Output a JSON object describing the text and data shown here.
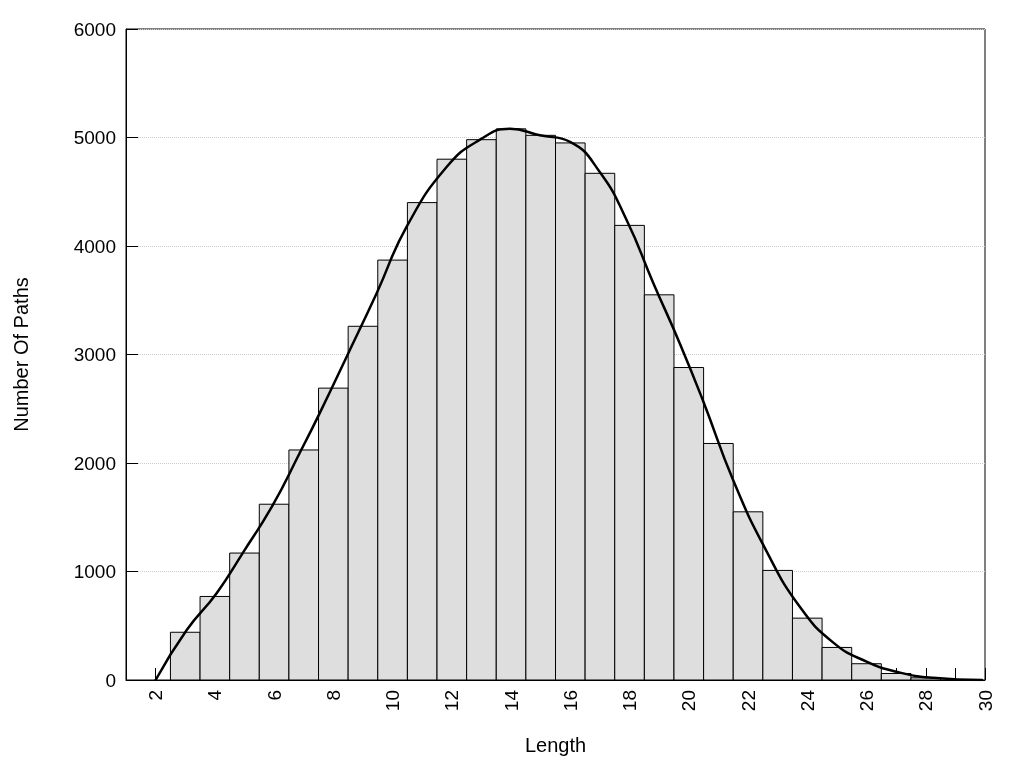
{
  "chart_data": {
    "type": "histogram",
    "xlabel": "Length",
    "ylabel": "Number Of Paths",
    "series": [
      {
        "color": "#dedede",
        "bins": [
          2.5,
          3.5,
          4.5,
          5.5,
          6.5,
          7.5,
          8.5,
          9.5,
          10.5,
          11.5,
          12.5,
          13.5,
          14.5,
          15.5,
          16.5,
          17.5,
          18.5,
          19.5,
          20.5,
          21.5,
          22.5,
          23.5,
          24.5,
          25.5,
          26.5,
          27.5,
          28.5,
          29.5
        ],
        "values": [
          440,
          770,
          1170,
          1620,
          2120,
          2690,
          3260,
          3870,
          4400,
          4800,
          4980,
          5080,
          5020,
          4950,
          4670,
          4190,
          3550,
          2880,
          2180,
          1550,
          1010,
          570,
          300,
          150,
          60,
          20,
          null
        ]
      },
      {
        "type": "line",
        "color": "#000000",
        "x": [
          2,
          3.05,
          4.06,
          4.94,
          5.95,
          6.86,
          7.54,
          8.45,
          9.47,
          10.48,
          11.83,
          12.95,
          13.96,
          14.97,
          15.99,
          17,
          17.9,
          18.8,
          19.7,
          20.5,
          21.5,
          22.6,
          23.76,
          24.9,
          26,
          27.1,
          28.25,
          29.9
        ],
        "values": [
          0,
          460,
          800,
          1170,
          1610,
          2090,
          2460,
          2980,
          3570,
          4180,
          4730,
          4980,
          5080,
          5020,
          4960,
          4680,
          4240,
          3660,
          3100,
          2560,
          1840,
          1200,
          670,
          340,
          170,
          70,
          20,
          0
        ]
      }
    ],
    "xlim": [
      1,
      30
    ],
    "xticks": [
      {
        "value": 1,
        "label": null
      },
      2,
      {
        "value": 3,
        "label": null
      },
      4,
      {
        "value": 5,
        "label": null
      },
      6,
      {
        "value": 7,
        "label": null
      },
      8,
      {
        "value": 9,
        "label": null
      },
      10,
      {
        "value": 11,
        "label": null
      },
      12,
      {
        "value": 13,
        "label": null
      },
      14,
      {
        "value": 15,
        "label": null
      },
      16,
      {
        "value": 17,
        "label": null
      },
      18,
      {
        "value": 19,
        "label": null
      },
      20,
      {
        "value": 21,
        "label": null
      },
      22,
      {
        "value": 23,
        "label": null
      },
      24,
      {
        "value": 25,
        "label": null
      },
      26,
      {
        "value": 27,
        "label": null
      },
      28,
      {
        "value": 29,
        "label": null
      },
      30
    ],
    "ylim": [
      0,
      6000
    ],
    "yticks": [
      0,
      1000,
      2000,
      3000,
      4000,
      5000,
      6000
    ],
    "grid": "y",
    "marker": "none",
    "line_style": "solid"
  }
}
